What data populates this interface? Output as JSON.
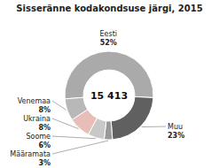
{
  "chart_data": {
    "type": "pie",
    "title": "Sisseränne kodakondsuse järgi, 2015",
    "categories": [
      "Eesti",
      "Muu",
      "Määramata",
      "Soome",
      "Ukraina",
      "Venemaa"
    ],
    "values": [
      52,
      23,
      3,
      6,
      8,
      8
    ],
    "value_labels": [
      "52%",
      "23%",
      "3%",
      "6%",
      "8%",
      "8%"
    ],
    "colors": [
      "#aaaaaa",
      "#606060",
      "#999999",
      "#c8c8c8",
      "#e8bfb8",
      "#b8b8b8"
    ],
    "data_labels": true,
    "annotations": [
      "15 413"
    ]
  }
}
